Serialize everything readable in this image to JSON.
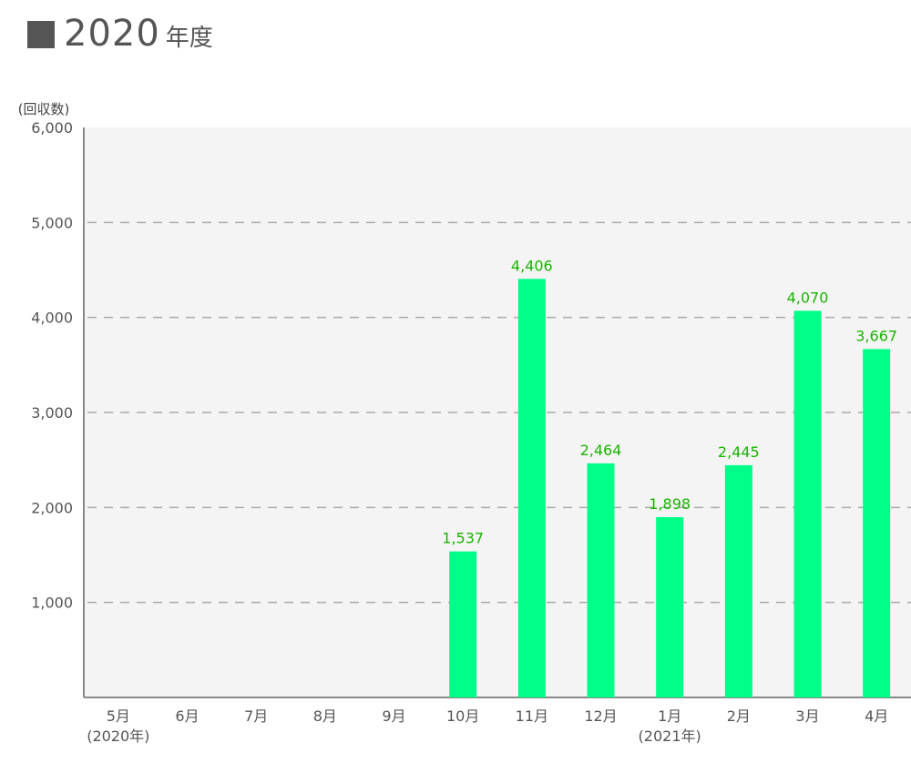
{
  "title": {
    "year": "2020",
    "suffix": "年度"
  },
  "chart_data": {
    "type": "bar",
    "ylabel": "(回収数)",
    "ylim": [
      0,
      6000
    ],
    "yticks": [
      1000,
      2000,
      3000,
      4000,
      5000,
      6000
    ],
    "ytick_labels": [
      "1,000",
      "2,000",
      "3,000",
      "4,000",
      "5,000",
      "6,000"
    ],
    "grid": true,
    "bar_color": "#00ff88",
    "label_color": "#19b400",
    "categories": [
      "5月",
      "6月",
      "7月",
      "8月",
      "9月",
      "10月",
      "11月",
      "12月",
      "1月",
      "2月",
      "3月",
      "4月"
    ],
    "sublabels": [
      "(2020年)",
      "",
      "",
      "",
      "",
      "",
      "",
      "",
      "(2021年)",
      "",
      "",
      ""
    ],
    "values": [
      null,
      null,
      null,
      null,
      null,
      1537,
      4406,
      2464,
      1898,
      2445,
      4070,
      3667
    ],
    "value_labels": [
      "",
      "",
      "",
      "",
      "",
      "1,537",
      "4,406",
      "2,464",
      "1,898",
      "2,445",
      "4,070",
      "3,667"
    ]
  }
}
